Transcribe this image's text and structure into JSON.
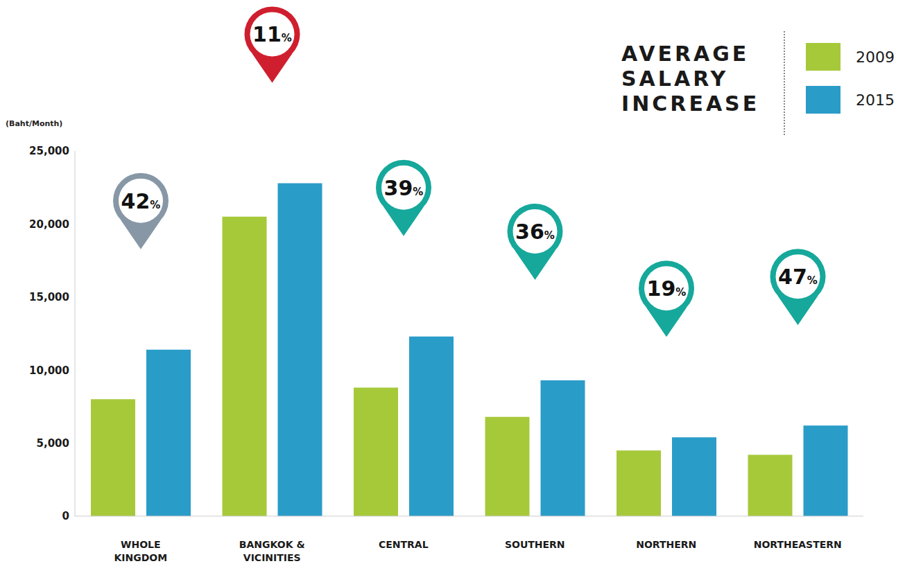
{
  "chart_data": {
    "type": "bar",
    "title": "AVERAGE SALARY INCREASE",
    "y_label": "(Baht/Month)",
    "categories": [
      "WHOLE KINGDOM",
      "BANGKOK & VICINITIES",
      "CENTRAL",
      "SOUTHERN",
      "NORTHERN",
      "NORTHEASTERN"
    ],
    "series": [
      {
        "name": "2009",
        "color": "#a6c93a",
        "values": [
          8000,
          20500,
          8800,
          6800,
          4500,
          4200
        ]
      },
      {
        "name": "2015",
        "color": "#2a9cc8",
        "values": [
          11400,
          22800,
          12300,
          9300,
          5400,
          6200
        ]
      }
    ],
    "annotations": [
      "42%",
      "11%",
      "39%",
      "36%",
      "19%",
      "47%"
    ],
    "ylim": [
      0,
      25000
    ],
    "yticks": [
      {
        "value": 0,
        "label": "0"
      },
      {
        "value": 5000,
        "label": "5,000"
      },
      {
        "value": 10000,
        "label": "10,000"
      },
      {
        "value": 15000,
        "label": "15,000"
      },
      {
        "value": 20000,
        "label": "20,000"
      },
      {
        "value": 25000,
        "label": "25,000"
      }
    ],
    "legend": "top-right",
    "grid": false
  }
}
